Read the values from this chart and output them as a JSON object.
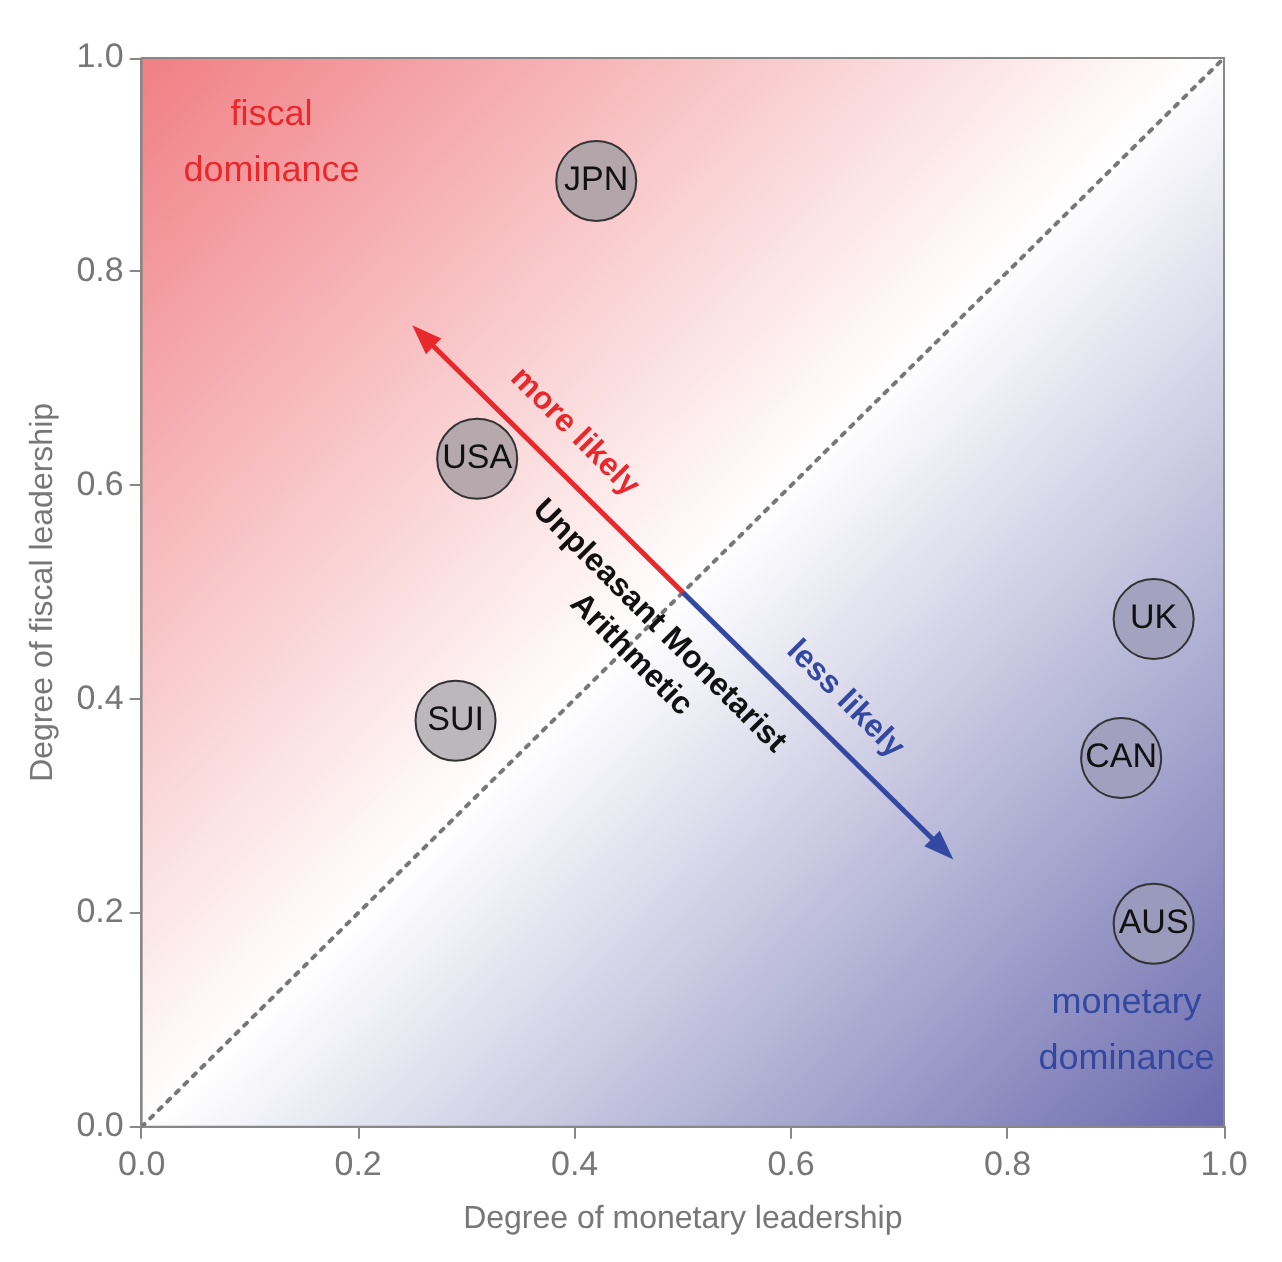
{
  "chart_data": {
    "type": "scatter",
    "xlabel": "Degree of monetary leadership",
    "ylabel": "Degree of fiscal leadership",
    "xlim": [
      0,
      1
    ],
    "ylim": [
      0,
      1
    ],
    "xticks": [
      {
        "value": 0,
        "label": "0.0"
      },
      0.2,
      0.4,
      0.6,
      0.8,
      {
        "value": 1,
        "label": "1.0"
      }
    ],
    "yticks": [
      {
        "value": 0,
        "label": "0.0"
      },
      0.2,
      0.4,
      0.6,
      0.8,
      {
        "value": 1,
        "label": "1.0"
      }
    ],
    "grid": false,
    "legend": false,
    "marker": "circle",
    "series": [
      {
        "name": "JPN",
        "color": "#b3a6aa",
        "x": [
          0.42
        ],
        "values": [
          0.885
        ]
      },
      {
        "name": "USA",
        "color": "#b5a9ad",
        "x": [
          0.31
        ],
        "values": [
          0.625
        ]
      },
      {
        "name": "SUI",
        "color": "#bcb7ba",
        "x": [
          0.29
        ],
        "values": [
          0.38
        ]
      },
      {
        "name": "UK",
        "color": "#a3a3c0",
        "x": [
          0.935
        ],
        "values": [
          0.475
        ]
      },
      {
        "name": "CAN",
        "color": "#a1a1bf",
        "x": [
          0.905
        ],
        "values": [
          0.345
        ]
      },
      {
        "name": "AUS",
        "color": "#9a9abd",
        "x": [
          0.935
        ],
        "values": [
          0.19
        ]
      },
      {
        "type": "line",
        "color": "#777777",
        "line_style": "dotted",
        "marker": "none",
        "x": [
          0,
          1
        ],
        "values": [
          0,
          1
        ]
      }
    ],
    "annotations": [
      "fiscal\ndominance",
      "monetary\ndominance",
      "more likely",
      "less likely",
      "Unpleasant Monetarist\nArithmetic"
    ]
  }
}
